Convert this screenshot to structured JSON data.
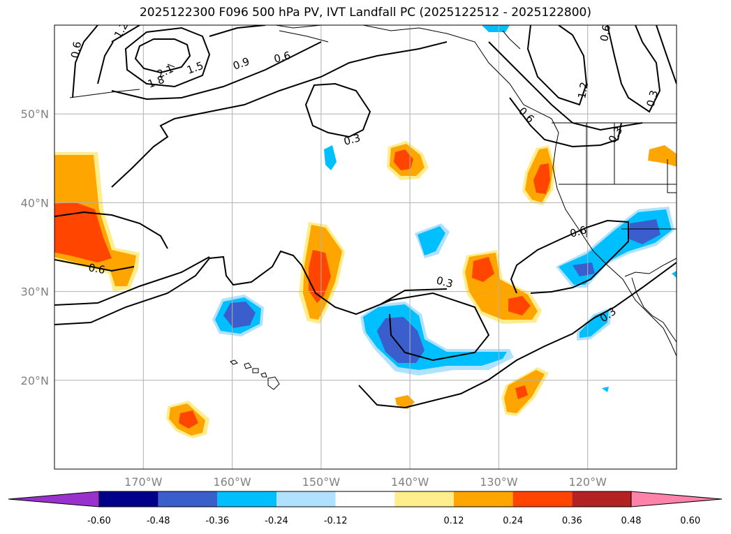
{
  "title": "2025122300 F096 500 hPa PV, IVT Landfall PC (2025122512 - 2025122800)",
  "map": {
    "lon_range": [
      -180,
      -110
    ],
    "lat_range": [
      10,
      60
    ],
    "lon_ticks": [
      {
        "value": -170,
        "label": "170°W"
      },
      {
        "value": -160,
        "label": "160°W"
      },
      {
        "value": -150,
        "label": "150°W"
      },
      {
        "value": -140,
        "label": "140°W"
      },
      {
        "value": -130,
        "label": "130°W"
      },
      {
        "value": -120,
        "label": "120°W"
      }
    ],
    "lat_ticks": [
      {
        "value": 20,
        "label": "20°N"
      },
      {
        "value": 30,
        "label": "30°N"
      },
      {
        "value": 40,
        "label": "40°N"
      },
      {
        "value": 50,
        "label": "50°N"
      }
    ],
    "grid": true,
    "contour_labels": [
      "0.6",
      "1.2",
      "1.5",
      "1.8",
      "2.1",
      "0.9",
      "0.6",
      "0.6",
      "0.3",
      "0.6",
      "0.3",
      "0.6",
      "0.3",
      "1.2",
      "0.6",
      "0.3",
      "0.3",
      "0.6"
    ]
  },
  "colorbar": {
    "colors": [
      "#9932CC",
      "#00008B",
      "#3A5FCD",
      "#00BFFF",
      "#B0E2FF",
      "#FFFFFF",
      "#FFEC8B",
      "#FFA500",
      "#FF4500",
      "#B22222",
      "#FF82AB"
    ],
    "labels": [
      "-0.60",
      "-0.48",
      "-0.36",
      "-0.24",
      "-0.12",
      "0.12",
      "0.24",
      "0.36",
      "0.48",
      "0.60"
    ]
  }
}
